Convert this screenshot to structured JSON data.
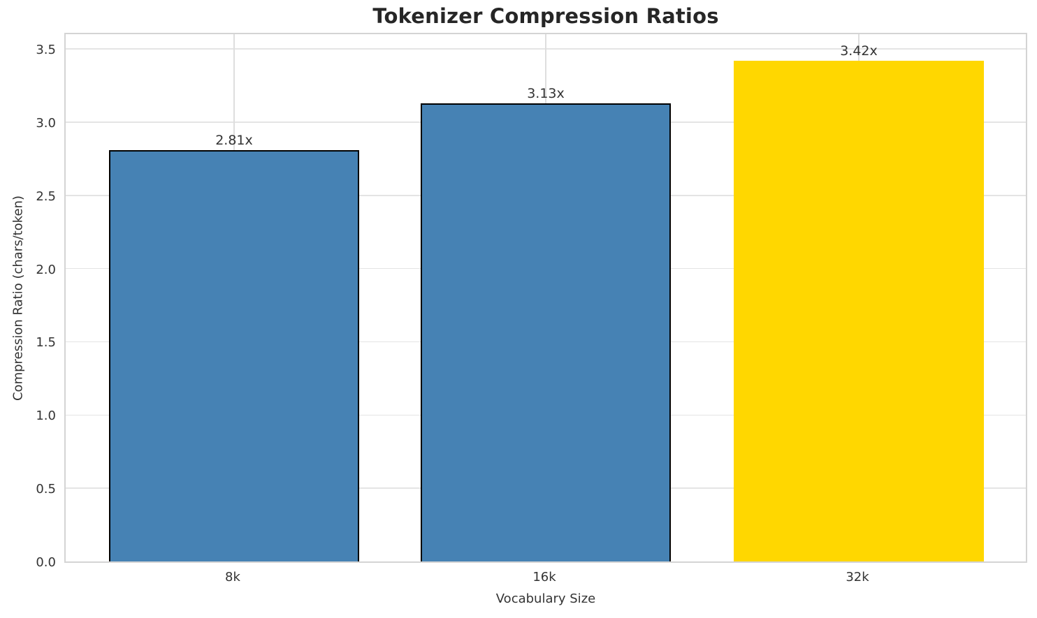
{
  "chart_data": {
    "type": "bar",
    "title": "Tokenizer Compression Ratios",
    "xlabel": "Vocabulary Size",
    "ylabel": "Compression Ratio (chars/token)",
    "categories": [
      "8k",
      "16k",
      "32k"
    ],
    "values": [
      2.81,
      3.13,
      3.42
    ],
    "bar_labels": [
      "2.81x",
      "3.13x",
      "3.42x"
    ],
    "bar_colors": [
      "#4682b4",
      "#4682b4",
      "#ffd700"
    ],
    "bar_edge_colors": [
      "#000000",
      "#000000",
      "none"
    ],
    "ylim": [
      0,
      3.62
    ],
    "yticks": [
      0.0,
      0.5,
      1.0,
      1.5,
      2.0,
      2.5,
      3.0,
      3.5
    ],
    "ytick_labels": [
      "0.0",
      "0.5",
      "1.0",
      "1.5",
      "2.0",
      "2.5",
      "3.0",
      "3.5"
    ],
    "grid": "horizontal and vertical light gray",
    "legend_position": "none"
  }
}
